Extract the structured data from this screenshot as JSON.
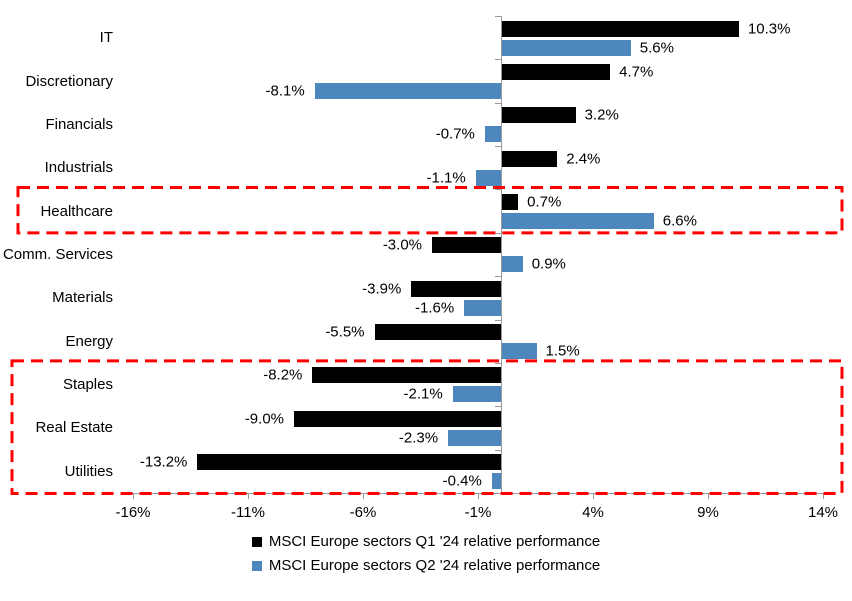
{
  "chart_data": {
    "type": "bar",
    "orientation": "horizontal",
    "title": "",
    "categories": [
      "IT",
      "Discretionary",
      "Financials",
      "Industrials",
      "Healthcare",
      "Comm. Services",
      "Materials",
      "Energy",
      "Staples",
      "Real Estate",
      "Utilities"
    ],
    "series": [
      {
        "name": "MSCI Europe sectors Q1 '24 relative performance",
        "color": "#000000",
        "values": [
          10.3,
          4.7,
          3.2,
          2.4,
          0.7,
          -3.0,
          -3.9,
          -5.5,
          -8.2,
          -9.0,
          -13.2
        ]
      },
      {
        "name": "MSCI Europe sectors Q2 '24 relative performance",
        "color": "#4E87BD",
        "values": [
          5.6,
          -8.1,
          -0.7,
          -1.1,
          6.6,
          0.9,
          -1.6,
          1.5,
          -2.1,
          -2.3,
          -0.4
        ]
      }
    ],
    "value_labels": [
      [
        "10.3%",
        "4.7%",
        "3.2%",
        "2.4%",
        "0.7%",
        "-3.0%",
        "-3.9%",
        "-5.5%",
        "-8.2%",
        "-9.0%",
        "-13.2%"
      ],
      [
        "5.6%",
        "-8.1%",
        "-0.7%",
        "-1.1%",
        "6.6%",
        "0.9%",
        "-1.6%",
        "1.5%",
        "-2.1%",
        "-2.3%",
        "-0.4%"
      ]
    ],
    "x_axis": {
      "tick_labels": [
        "-16%",
        "-11%",
        "-6%",
        "-1%",
        "4%",
        "9%",
        "14%"
      ],
      "tick_values": [
        -16,
        -11,
        -6,
        -1,
        4,
        9,
        14
      ],
      "range": [
        -16,
        14
      ],
      "grid": false
    },
    "legend_position": "bottom",
    "highlight_boxes": [
      {
        "categories": [
          "Healthcare"
        ],
        "color": "#FF0000",
        "style": "dashed"
      },
      {
        "categories": [
          "Staples",
          "Real Estate",
          "Utilities"
        ],
        "color": "#FF0000",
        "style": "dashed"
      }
    ]
  }
}
